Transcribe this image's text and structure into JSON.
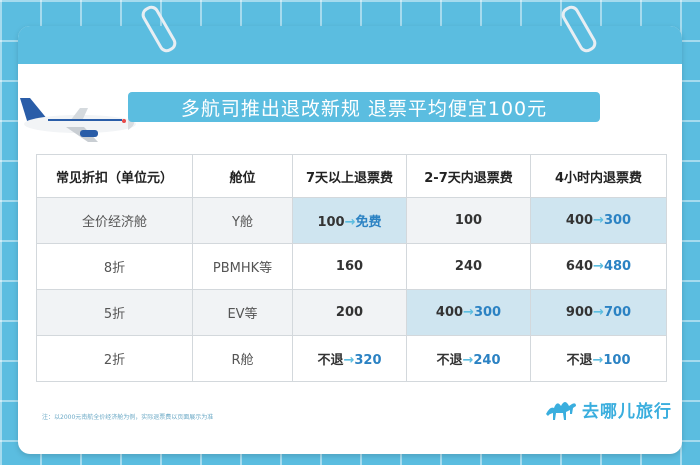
{
  "headline": "多航司推出退改新规 退票平均便宜100元",
  "table": {
    "headers": [
      "常见折扣（单位元）",
      "舱位",
      "7天以上退票费",
      "2-7天内退票费",
      "4小时内退票费"
    ],
    "rows": [
      {
        "discount": "全价经济舱",
        "cabin": "Y舱",
        "c7": {
          "old": "100",
          "new": "免费"
        },
        "c2_7": {
          "old": "100",
          "new": ""
        },
        "c4h": {
          "old": "400",
          "new": "300"
        }
      },
      {
        "discount": "8折",
        "cabin": "PBMHK等",
        "c7": {
          "old": "160",
          "new": ""
        },
        "c2_7": {
          "old": "240",
          "new": ""
        },
        "c4h": {
          "old": "640",
          "new": "480"
        }
      },
      {
        "discount": "5折",
        "cabin": "EV等",
        "c7": {
          "old": "200",
          "new": ""
        },
        "c2_7": {
          "old": "400",
          "new": "300"
        },
        "c4h": {
          "old": "900",
          "new": "700"
        }
      },
      {
        "discount": "2折",
        "cabin": "R舱",
        "c7": {
          "old": "不退",
          "new": "320"
        },
        "c2_7": {
          "old": "不退",
          "new": "240"
        },
        "c4h": {
          "old": "不退",
          "new": "100"
        }
      }
    ],
    "arrow": "→"
  },
  "footnote": "注：以2000元南航全价经济舱为例，实际退票费以页面展示为准",
  "brand": {
    "name": "去哪儿旅行",
    "icon": "camel-icon"
  },
  "colors": {
    "accent": "#5bbde0",
    "highlight": "#cfe5f0",
    "new_value": "#2b82c3"
  }
}
